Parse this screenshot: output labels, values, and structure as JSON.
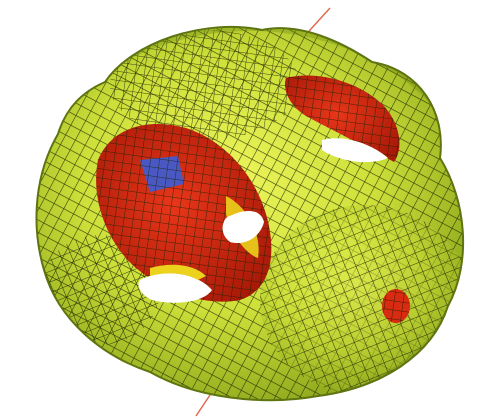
{
  "figure": {
    "subject": "wireframe-surface",
    "colors": {
      "background": "#ffffff",
      "surface_light": "#e2ef4a",
      "surface_mid": "#bcd62e",
      "surface_dark": "#8aa41a",
      "mesh": "#1a2200",
      "hole_red": "#d92a12",
      "hole_red_dark": "#a51808",
      "hole_yellow": "#ecd21c",
      "hole_blue": "#4a58c4",
      "axis_line": "#e0664a"
    }
  }
}
